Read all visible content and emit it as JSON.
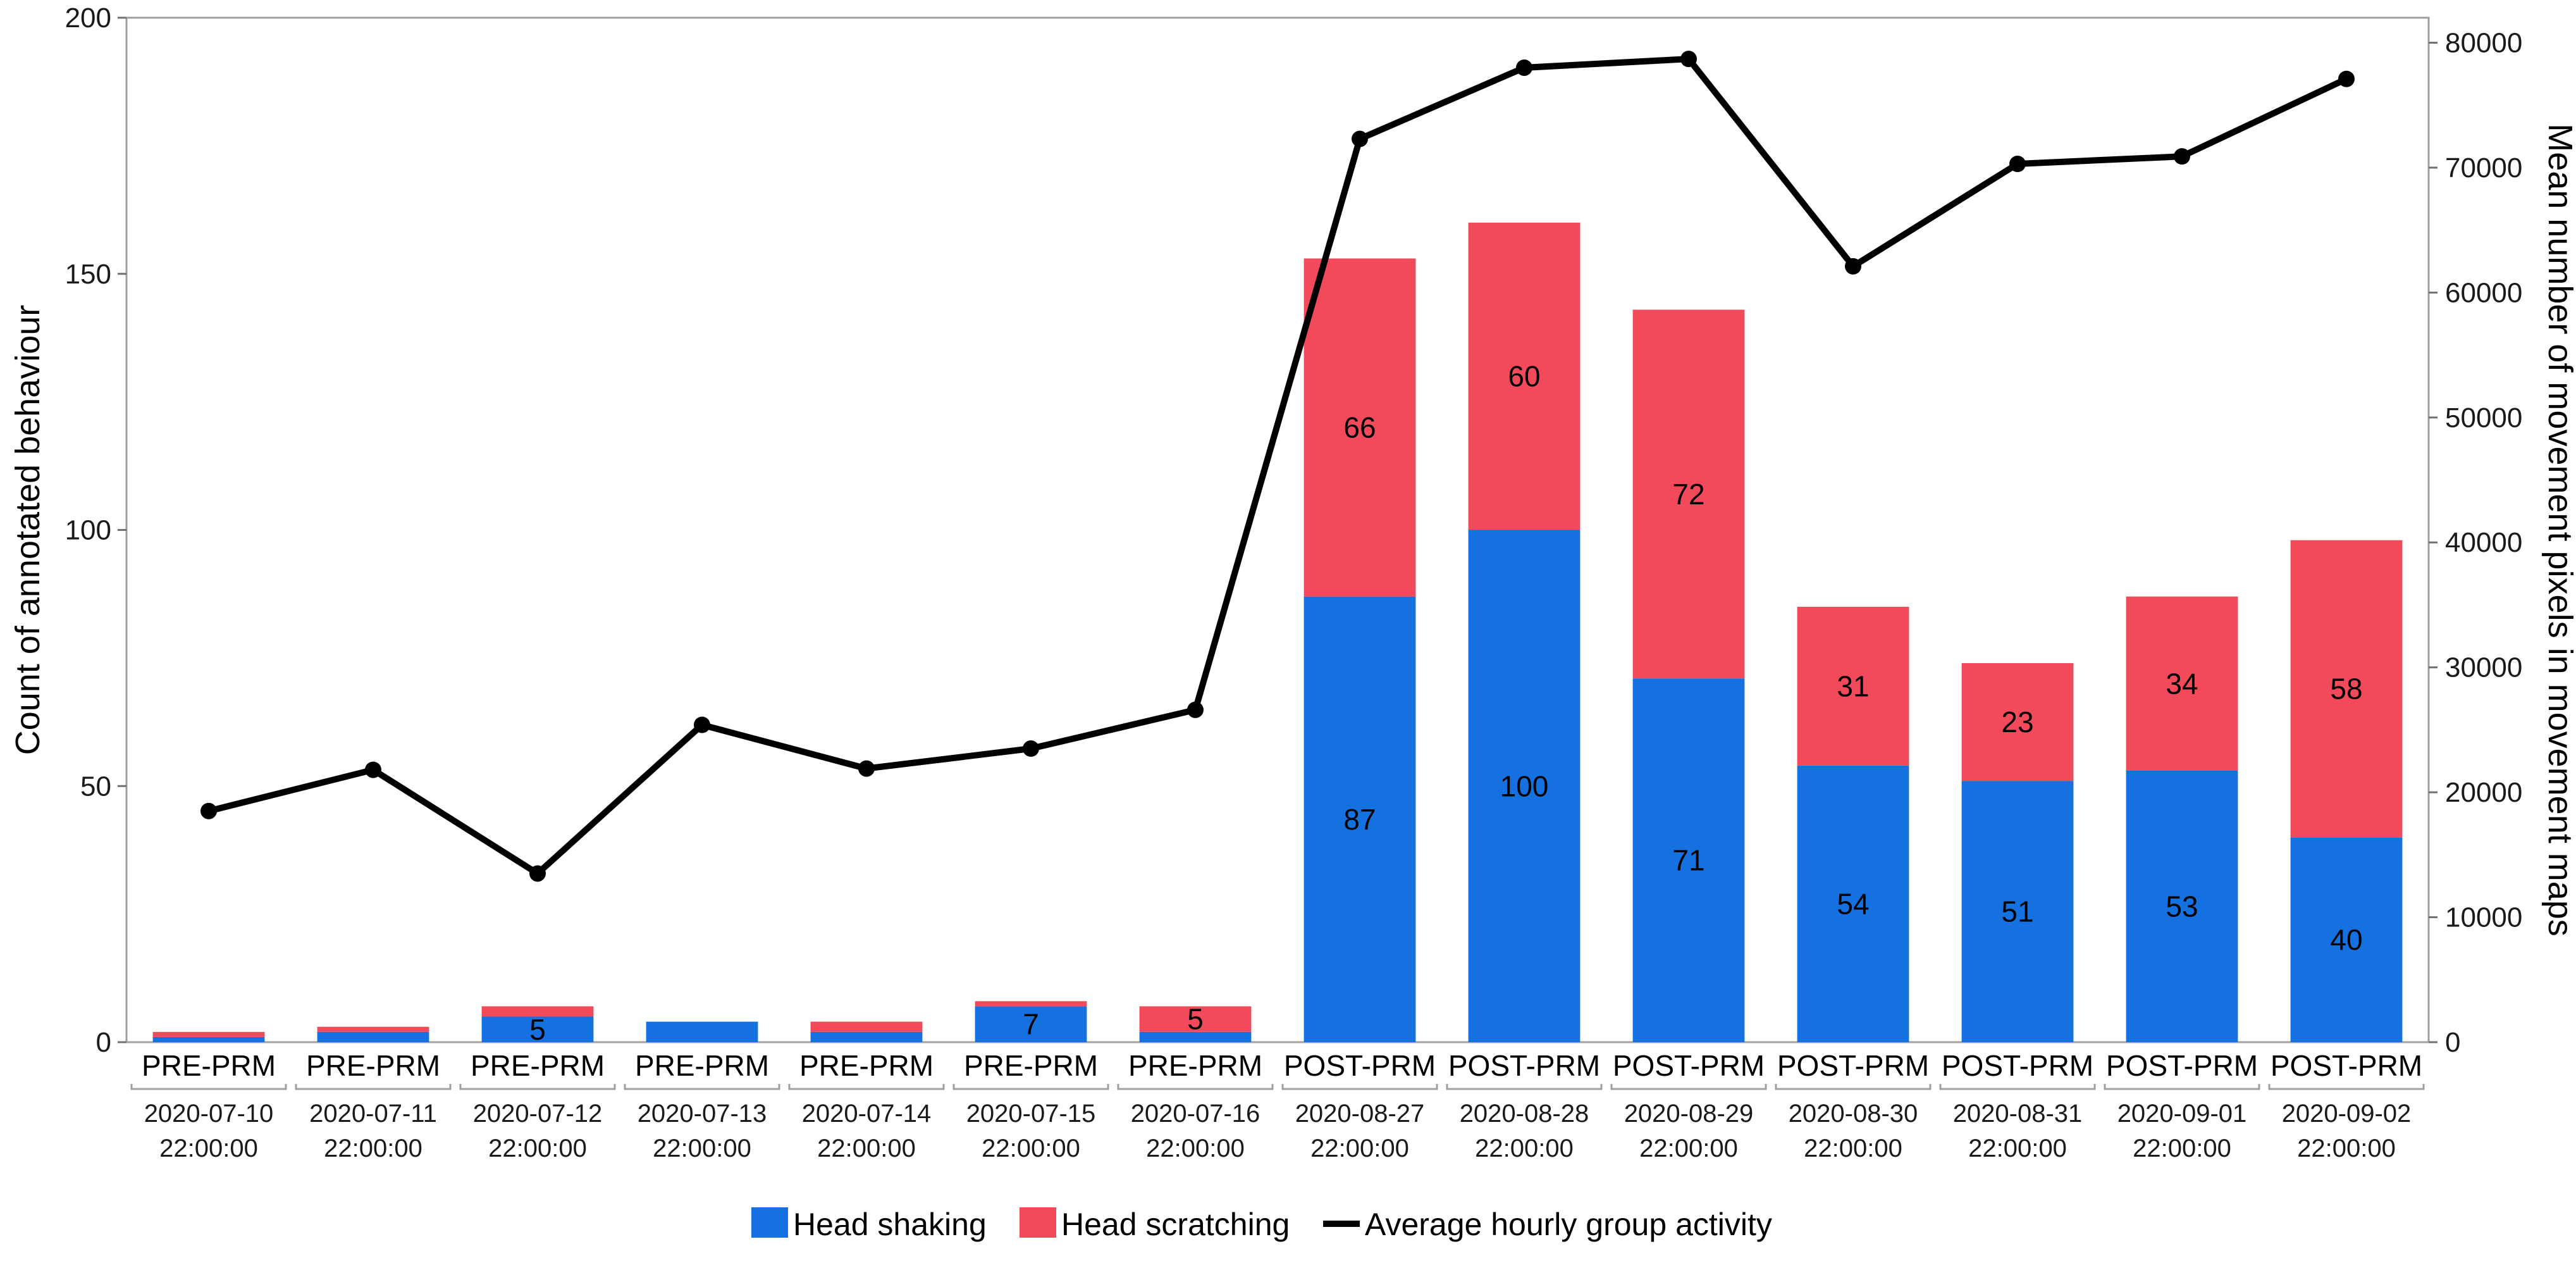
{
  "chart_data": {
    "type": "bar",
    "subtype": "stacked-bar-with-line",
    "categories": [
      "PRE-PRM",
      "PRE-PRM",
      "PRE-PRM",
      "PRE-PRM",
      "PRE-PRM",
      "PRE-PRM",
      "PRE-PRM",
      "POST-PRM",
      "POST-PRM",
      "POST-PRM",
      "POST-PRM",
      "POST-PRM",
      "POST-PRM",
      "POST-PRM"
    ],
    "dates": [
      "2020-07-10",
      "2020-07-11",
      "2020-07-12",
      "2020-07-13",
      "2020-07-14",
      "2020-07-15",
      "2020-07-16",
      "2020-08-27",
      "2020-08-28",
      "2020-08-29",
      "2020-08-30",
      "2020-08-31",
      "2020-09-01",
      "2020-09-02"
    ],
    "time": "22:00:00",
    "series": [
      {
        "name": "Head shaking",
        "color": "#1570E0",
        "axis": "left",
        "values": [
          1,
          2,
          5,
          4,
          2,
          7,
          2,
          87,
          100,
          71,
          54,
          51,
          53,
          40
        ],
        "labels": [
          "",
          "",
          "5",
          "",
          "",
          "7",
          "",
          "87",
          "100",
          "71",
          "54",
          "51",
          "53",
          "40"
        ]
      },
      {
        "name": "Head scratching",
        "color": "#F24A5A",
        "axis": "left",
        "values": [
          1,
          1,
          2,
          0,
          2,
          1,
          5,
          66,
          60,
          72,
          31,
          23,
          34,
          58
        ],
        "labels": [
          "",
          "",
          "",
          "",
          "",
          "",
          "5",
          "66",
          "60",
          "72",
          "31",
          "23",
          "34",
          "58"
        ]
      },
      {
        "name": "Average hourly group activity",
        "color": "#000000",
        "axis": "right",
        "type": "line",
        "values": [
          18500,
          21800,
          13500,
          25400,
          21900,
          23500,
          26600,
          72300,
          78000,
          78700,
          62100,
          70300,
          70900,
          77100
        ]
      }
    ],
    "ylabel": "Count of annotated behaviour",
    "y2label": "Mean number of movement pixels in movement maps",
    "ylim": [
      0,
      200
    ],
    "yticks": [
      "0",
      "50",
      "100",
      "150",
      "200"
    ],
    "y2lim": [
      0,
      82000
    ],
    "y2ticks": [
      "0",
      "10000",
      "20000",
      "30000",
      "40000",
      "50000",
      "60000",
      "70000",
      "80000"
    ],
    "legend_position": "bottom-center",
    "grid": false
  }
}
